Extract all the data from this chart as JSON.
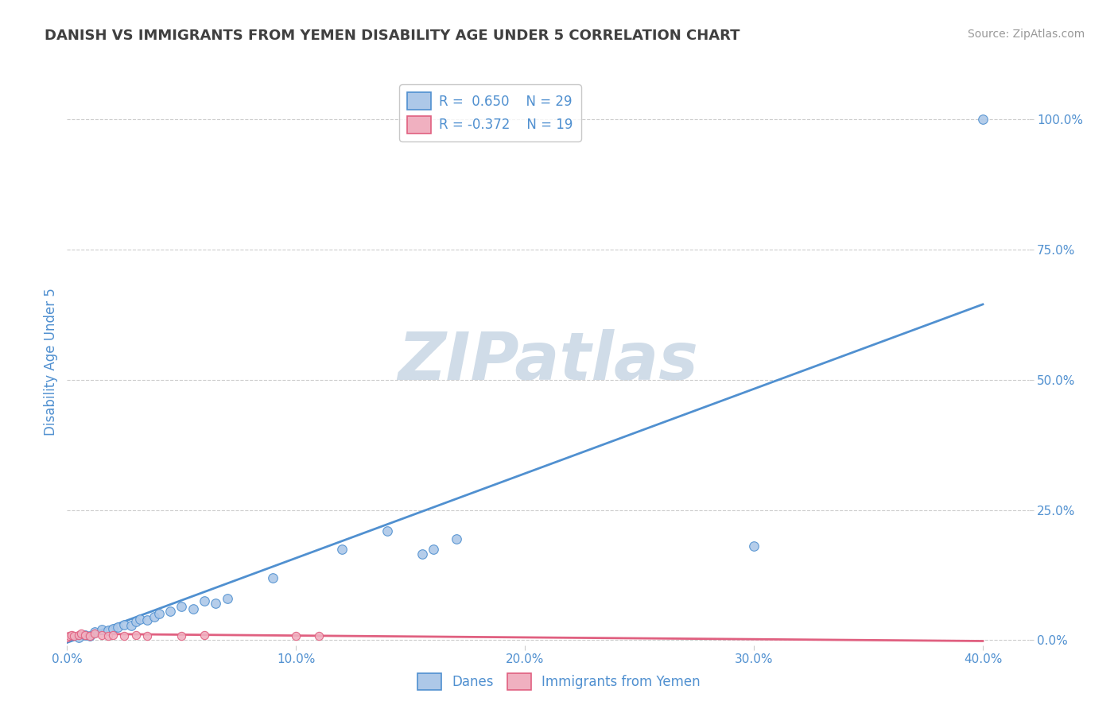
{
  "title": "DANISH VS IMMIGRANTS FROM YEMEN DISABILITY AGE UNDER 5 CORRELATION CHART",
  "source": "Source: ZipAtlas.com",
  "ylabel": "Disability Age Under 5",
  "blue_R": 0.65,
  "blue_N": 29,
  "pink_R": -0.372,
  "pink_N": 19,
  "blue_color": "#adc8e8",
  "pink_color": "#f0b0c0",
  "blue_line_color": "#5090d0",
  "pink_line_color": "#e06080",
  "bg_color": "#ffffff",
  "grid_color": "#cccccc",
  "title_color": "#404040",
  "axis_color": "#5090d0",
  "watermark_color": "#d0dce8",
  "xlim": [
    0.0,
    0.42
  ],
  "ylim": [
    -0.01,
    1.08
  ],
  "xticks": [
    0.0,
    0.1,
    0.2,
    0.3,
    0.4
  ],
  "yticks": [
    0.0,
    0.25,
    0.5,
    0.75,
    1.0
  ],
  "blue_scatter_x": [
    0.005,
    0.008,
    0.01,
    0.012,
    0.015,
    0.018,
    0.02,
    0.022,
    0.025,
    0.028,
    0.03,
    0.032,
    0.035,
    0.038,
    0.04,
    0.045,
    0.05,
    0.055,
    0.06,
    0.065,
    0.07,
    0.09,
    0.12,
    0.14,
    0.155,
    0.16,
    0.17,
    0.3,
    0.4
  ],
  "blue_scatter_y": [
    0.005,
    0.01,
    0.008,
    0.015,
    0.02,
    0.018,
    0.022,
    0.025,
    0.03,
    0.028,
    0.035,
    0.04,
    0.038,
    0.045,
    0.05,
    0.055,
    0.065,
    0.06,
    0.075,
    0.07,
    0.08,
    0.12,
    0.175,
    0.21,
    0.165,
    0.175,
    0.195,
    0.18,
    1.0
  ],
  "pink_scatter_x": [
    0.0,
    0.001,
    0.002,
    0.003,
    0.005,
    0.006,
    0.008,
    0.01,
    0.012,
    0.015,
    0.018,
    0.02,
    0.025,
    0.03,
    0.035,
    0.05,
    0.06,
    0.1,
    0.11
  ],
  "pink_scatter_y": [
    0.005,
    0.008,
    0.01,
    0.008,
    0.01,
    0.012,
    0.01,
    0.008,
    0.012,
    0.01,
    0.008,
    0.01,
    0.008,
    0.01,
    0.008,
    0.008,
    0.01,
    0.008,
    0.008
  ],
  "blue_line_x0": 0.0,
  "blue_line_x1": 0.4,
  "blue_line_y0": -0.005,
  "blue_line_y1": 0.645,
  "pink_line_x0": 0.0,
  "pink_line_x1": 0.4,
  "pink_line_y0": 0.012,
  "pink_line_y1": -0.002
}
